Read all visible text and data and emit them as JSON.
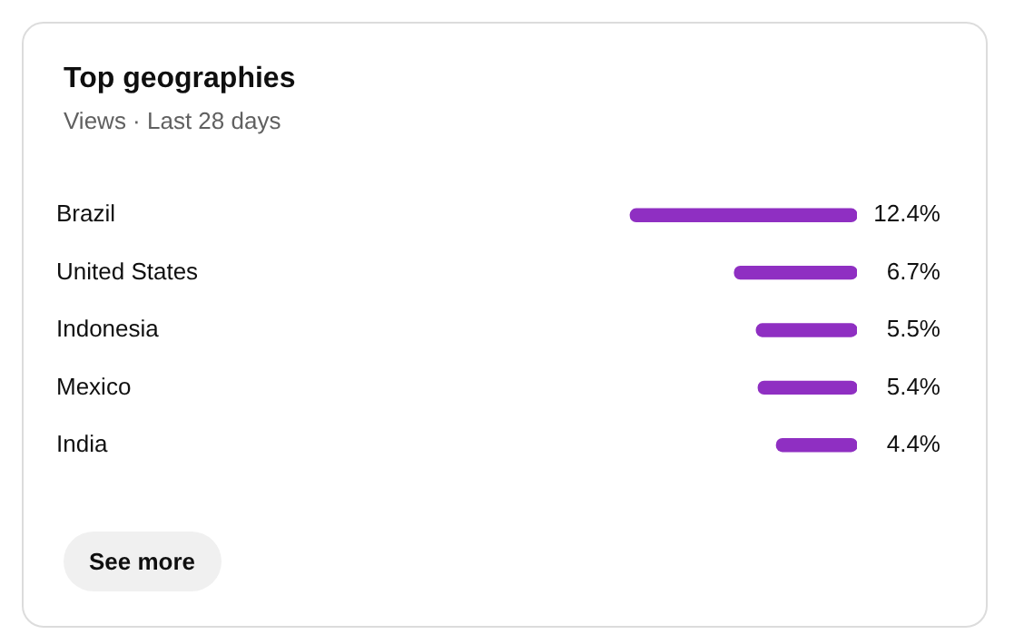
{
  "chart_data": {
    "type": "bar",
    "orientation": "horizontal",
    "title": "Top geographies",
    "subtitle": "Views · Last 28 days",
    "categories": [
      "Brazil",
      "United States",
      "Indonesia",
      "Mexico",
      "India"
    ],
    "values": [
      12.4,
      6.7,
      5.5,
      5.4,
      4.4
    ],
    "value_labels": [
      "12.4%",
      "6.7%",
      "5.5%",
      "5.4%",
      "4.4%"
    ],
    "color": "#8f2fc2",
    "annotations": [
      "See more"
    ]
  }
}
